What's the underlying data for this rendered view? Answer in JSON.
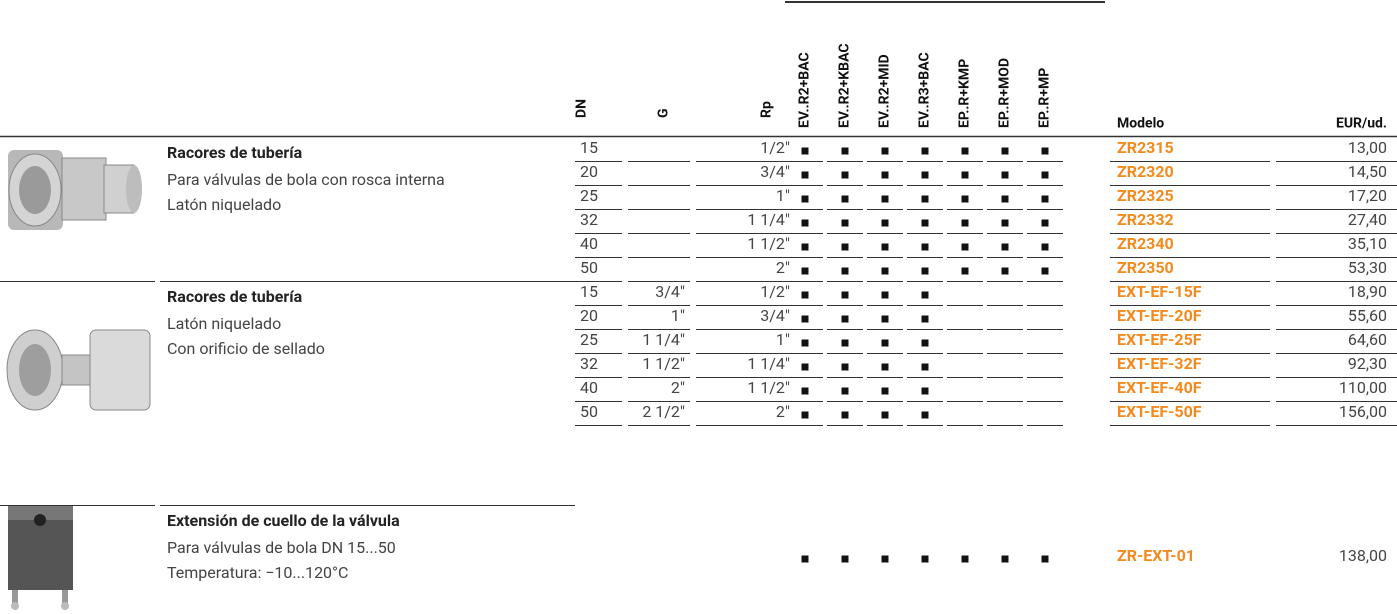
{
  "header": {
    "columns": [
      "DN",
      "G",
      "Rp",
      "EV..R2+BAC",
      "EV..R2+KBAC",
      "EV..R2+MID",
      "EV..R3+BAC",
      "EP..R+KMP",
      "EP..R+MOD",
      "EP..R+MP",
      "Modelo",
      "EUR/ud."
    ]
  },
  "groups": [
    {
      "title": "Racores de tubería",
      "lines": [
        "Para válvulas de bola con rosca interna",
        "Latón niquelado"
      ],
      "rows": [
        {
          "dn": "15",
          "rp": "1/2\"",
          "compat": [
            true,
            true,
            true,
            true,
            true,
            true,
            true
          ],
          "model": "ZR2315",
          "price": "13,00"
        },
        {
          "dn": "20",
          "rp": "3/4\"",
          "compat": [
            true,
            true,
            true,
            true,
            true,
            true,
            true
          ],
          "model": "ZR2320",
          "price": "14,50"
        },
        {
          "dn": "25",
          "rp": "1\"",
          "compat": [
            true,
            true,
            true,
            true,
            true,
            true,
            true
          ],
          "model": "ZR2325",
          "price": "17,20"
        },
        {
          "dn": "32",
          "rp": "1 1/4\"",
          "compat": [
            true,
            true,
            true,
            true,
            true,
            true,
            true
          ],
          "model": "ZR2332",
          "price": "27,40"
        },
        {
          "dn": "40",
          "rp": "1 1/2\"",
          "compat": [
            true,
            true,
            true,
            true,
            true,
            true,
            true
          ],
          "model": "ZR2340",
          "price": "35,10"
        },
        {
          "dn": "50",
          "rp": "2\"",
          "compat": [
            true,
            true,
            true,
            true,
            true,
            true,
            true
          ],
          "model": "ZR2350",
          "price": "53,30"
        }
      ]
    },
    {
      "title": "Racores de tubería",
      "lines": [
        "Latón niquelado",
        "Con orificio de sellado"
      ],
      "rows": [
        {
          "dn": "15",
          "g": "3/4\"",
          "rp": "1/2\"",
          "compat": [
            true,
            true,
            true,
            true,
            false,
            false,
            false
          ],
          "model": "EXT-EF-15F",
          "price": "18,90"
        },
        {
          "dn": "20",
          "g": "1\"",
          "rp": "3/4\"",
          "compat": [
            true,
            true,
            true,
            true,
            false,
            false,
            false
          ],
          "model": "EXT-EF-20F",
          "price": "55,60"
        },
        {
          "dn": "25",
          "g": "1 1/4\"",
          "rp": "1\"",
          "compat": [
            true,
            true,
            true,
            true,
            false,
            false,
            false
          ],
          "model": "EXT-EF-25F",
          "price": "64,60"
        },
        {
          "dn": "32",
          "g": "1 1/2\"",
          "rp": "1 1/4\"",
          "compat": [
            true,
            true,
            true,
            true,
            false,
            false,
            false
          ],
          "model": "EXT-EF-32F",
          "price": "92,30"
        },
        {
          "dn": "40",
          "g": "2\"",
          "rp": "1 1/2\"",
          "compat": [
            true,
            true,
            true,
            true,
            false,
            false,
            false
          ],
          "model": "EXT-EF-40F",
          "price": "110,00"
        },
        {
          "dn": "50",
          "g": "2 1/2\"",
          "rp": "2\"",
          "compat": [
            true,
            true,
            true,
            true,
            false,
            false,
            false
          ],
          "model": "EXT-EF-50F",
          "price": "156,00"
        }
      ]
    },
    {
      "title": "Extensión de cuello de la válvula",
      "lines": [
        "Para válvulas de bola DN 15...50",
        "Temperatura: −10...120°C"
      ],
      "rows": [
        {
          "compat": [
            true,
            true,
            true,
            true,
            true,
            true,
            true
          ],
          "model": "ZR-EXT-01",
          "price": "138,00"
        }
      ]
    }
  ]
}
